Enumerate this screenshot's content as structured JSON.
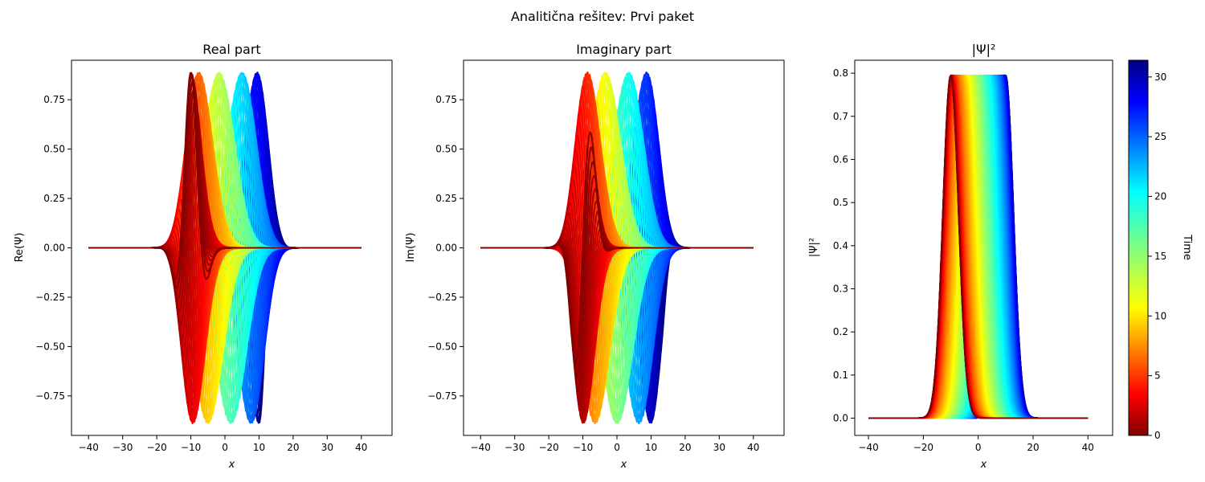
{
  "suptitle": "Analitična rešitev: Prvi paket",
  "chart_data": [
    {
      "type": "line",
      "title": "Real part",
      "xlabel": "x",
      "ylabel": "Re(Ψ)",
      "xlim": [
        -45,
        49
      ],
      "ylim": [
        -0.95,
        0.95
      ],
      "xticks": [
        -40,
        -30,
        -20,
        -10,
        0,
        10,
        20,
        30,
        40
      ],
      "xtick_labels": [
        "−40",
        "−30",
        "−20",
        "−10",
        "0",
        "10",
        "20",
        "30",
        "40"
      ],
      "yticks": [
        -0.75,
        -0.5,
        -0.25,
        0,
        0.25,
        0.5,
        0.75
      ],
      "ytick_labels": [
        "−0.75",
        "−0.50",
        "−0.25",
        "0.00",
        "0.25",
        "0.50",
        "0.75"
      ],
      "grid": false,
      "series_family": "real part of Gaussian wave packet, one curve per time step, colored by time",
      "packet": {
        "amplitude": 0.89,
        "width": 4.0,
        "wavenumber": 0.5,
        "center_start": -10,
        "center_end": 10,
        "x_range": [
          -40,
          40
        ]
      }
    },
    {
      "type": "line",
      "title": "Imaginary part",
      "xlabel": "x",
      "ylabel": "Im(Ψ)",
      "xlim": [
        -45,
        49
      ],
      "ylim": [
        -0.95,
        0.95
      ],
      "xticks": [
        -40,
        -30,
        -20,
        -10,
        0,
        10,
        20,
        30,
        40
      ],
      "xtick_labels": [
        "−40",
        "−30",
        "−20",
        "−10",
        "0",
        "10",
        "20",
        "30",
        "40"
      ],
      "yticks": [
        -0.75,
        -0.5,
        -0.25,
        0,
        0.25,
        0.5,
        0.75
      ],
      "ytick_labels": [
        "−0.75",
        "−0.50",
        "−0.25",
        "0.00",
        "0.25",
        "0.50",
        "0.75"
      ],
      "grid": false,
      "series_family": "imaginary part of Gaussian wave packet, one curve per time step, colored by time",
      "packet": {
        "amplitude": 0.89,
        "width": 4.0,
        "wavenumber": 0.5,
        "center_start": -10,
        "center_end": 10,
        "x_range": [
          -40,
          40
        ]
      }
    },
    {
      "type": "area",
      "title": "|Ψ|²",
      "xlabel": "x",
      "ylabel": "|Ψ|²",
      "xlim": [
        -45,
        49
      ],
      "ylim": [
        -0.04,
        0.83
      ],
      "xticks": [
        -40,
        -20,
        0,
        20,
        40
      ],
      "xtick_labels": [
        "−40",
        "−20",
        "0",
        "20",
        "40"
      ],
      "yticks": [
        0,
        0.1,
        0.2,
        0.3,
        0.4,
        0.5,
        0.6,
        0.7,
        0.8
      ],
      "ytick_labels": [
        "0.0",
        "0.1",
        "0.2",
        "0.3",
        "0.4",
        "0.5",
        "0.6",
        "0.7",
        "0.8"
      ],
      "grid": false,
      "series_family": "probability density of Gaussian wave packet, one curve per time step, colored by time",
      "packet": {
        "amplitude": 0.795,
        "width": 4.0,
        "center_start": -10,
        "center_end": 10,
        "x_range": [
          -40,
          40
        ]
      }
    }
  ],
  "colorbar": {
    "label": "Time",
    "colormap": "jet_r",
    "range": [
      0,
      31.4
    ],
    "ticks": [
      0,
      5,
      10,
      15,
      20,
      25,
      30
    ],
    "tick_labels": [
      "0",
      "5",
      "10",
      "15",
      "20",
      "25",
      "30"
    ]
  },
  "time_steps": {
    "t_min": 0,
    "t_max": 31.4,
    "count": 120
  }
}
